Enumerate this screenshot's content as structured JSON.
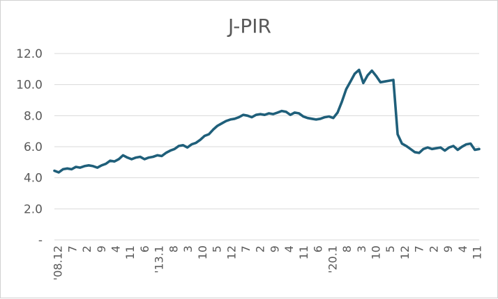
{
  "chart_data": {
    "type": "line",
    "title": "J-PIR",
    "xlabel": "",
    "ylabel": "",
    "ylim": [
      0,
      12
    ],
    "ytick_labels": [
      "-",
      "2.0",
      "4.0",
      "6.0",
      "8.0",
      "10.0",
      "12.0"
    ],
    "xtick_labels": [
      "'08.12",
      "7",
      "2",
      "9",
      "4",
      "11",
      "6",
      "'13.1",
      "8",
      "3",
      "10",
      "5",
      "12",
      "7",
      "2",
      "9",
      "4",
      "11",
      "6",
      "'20.1",
      "8",
      "3",
      "10",
      "5",
      "12",
      "7",
      "2",
      "9",
      "4",
      "11"
    ],
    "grid": true,
    "legend": "none",
    "colors": {
      "series": "#1f5f7a",
      "grid": "#d9d9d9",
      "text": "#595959"
    },
    "series": [
      {
        "values": [
          4.45,
          4.35,
          4.55,
          4.6,
          4.55,
          4.7,
          4.65,
          4.75,
          4.8,
          4.75,
          4.65,
          4.8,
          4.9,
          5.1,
          5.05,
          5.2,
          5.45,
          5.3,
          5.2,
          5.3,
          5.35,
          5.2,
          5.3,
          5.35,
          5.45,
          5.4,
          5.6,
          5.75,
          5.85,
          6.05,
          6.1,
          5.95,
          6.15,
          6.25,
          6.45,
          6.7,
          6.8,
          7.1,
          7.35,
          7.5,
          7.65,
          7.75,
          7.8,
          7.9,
          8.05,
          8.0,
          7.9,
          8.05,
          8.1,
          8.05,
          8.15,
          8.1,
          8.2,
          8.3,
          8.25,
          8.05,
          8.2,
          8.15,
          7.95,
          7.85,
          7.8,
          7.75,
          7.8,
          7.9,
          7.95,
          7.85,
          8.2,
          8.9,
          9.7,
          10.2,
          10.7,
          10.95,
          10.1,
          10.6,
          10.9,
          10.55,
          10.15,
          10.2,
          10.25,
          10.3,
          6.8,
          6.2,
          6.05,
          5.85,
          5.65,
          5.6,
          5.85,
          5.95,
          5.85,
          5.9,
          5.95,
          5.75,
          5.95,
          6.05,
          5.8,
          6.0,
          6.15,
          6.2,
          5.8,
          5.85
        ]
      }
    ]
  }
}
